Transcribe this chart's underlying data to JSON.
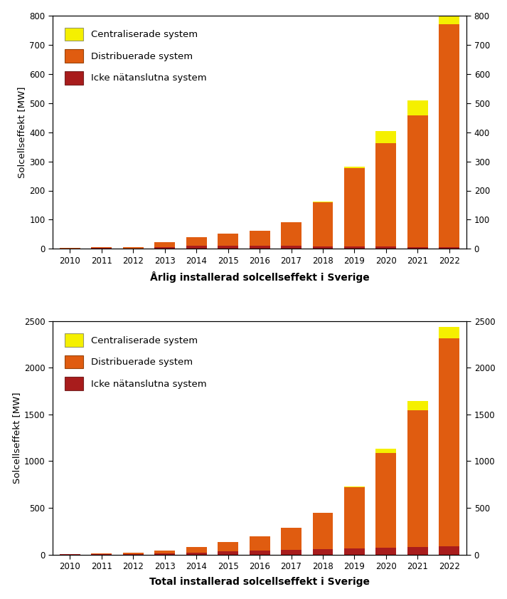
{
  "years": [
    2010,
    2011,
    2012,
    2013,
    2014,
    2015,
    2016,
    2017,
    2018,
    2019,
    2020,
    2021,
    2022
  ],
  "annual_icke": [
    2,
    3,
    2,
    5,
    10,
    10,
    10,
    10,
    8,
    8,
    8,
    7,
    7
  ],
  "annual_dist": [
    2,
    4,
    4,
    18,
    30,
    42,
    52,
    82,
    152,
    268,
    355,
    450,
    763
  ],
  "annual_centr": [
    0,
    0,
    0,
    0,
    0,
    0,
    0,
    0,
    2,
    5,
    42,
    52,
    28
  ],
  "cumul_icke": [
    2,
    5,
    7,
    12,
    22,
    32,
    42,
    52,
    60,
    68,
    76,
    83,
    90
  ],
  "cumul_dist": [
    2,
    6,
    10,
    28,
    58,
    100,
    152,
    234,
    386,
    654,
    1009,
    1459,
    2222
  ],
  "cumul_centr": [
    0,
    0,
    0,
    0,
    0,
    0,
    0,
    0,
    2,
    7,
    50,
    100,
    128
  ],
  "color_icke": "#a81c1c",
  "color_dist": "#e05c10",
  "color_centr": "#f5f000",
  "legend_labels": [
    "Centraliserade system",
    "Distribuerade system",
    "Icke nätanslutna system"
  ],
  "ylabel1": "Solcellseffekt [MW]",
  "ylabel2": "Solcellseffekt [MW]",
  "xlabel1": "Årlig installerad solcellseffekt i Sverige",
  "xlabel2": "Total installerad solcellseffekt i Sverige",
  "ylim1": [
    0,
    800
  ],
  "ylim2": [
    0,
    2500
  ],
  "yticks1": [
    0,
    100,
    200,
    300,
    400,
    500,
    600,
    700,
    800
  ],
  "yticks2": [
    0,
    500,
    1000,
    1500,
    2000,
    2500
  ]
}
